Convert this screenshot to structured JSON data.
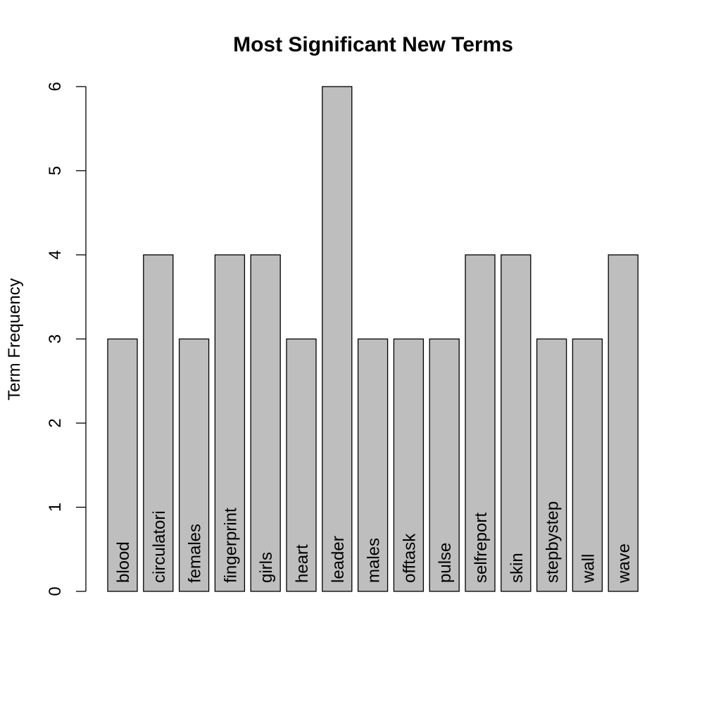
{
  "chart_data": {
    "type": "bar",
    "title": "Most Significant New Terms",
    "xlabel": "",
    "ylabel": "Term Frequency",
    "categories": [
      "blood",
      "circulatori",
      "females",
      "fingerprint",
      "girls",
      "heart",
      "leader",
      "males",
      "offtask",
      "pulse",
      "selfreport",
      "skin",
      "stepbystep",
      "wall",
      "wave"
    ],
    "values": [
      3,
      4,
      3,
      4,
      4,
      3,
      6,
      3,
      3,
      3,
      4,
      4,
      3,
      3,
      4
    ],
    "ylim": [
      0,
      6
    ],
    "yticks": [
      0,
      1,
      2,
      3,
      4,
      5,
      6
    ],
    "grid": false,
    "legend": "none",
    "bar_color": "#bebebe",
    "labels_inside_bars": true,
    "labels_rotated": "vertical"
  }
}
